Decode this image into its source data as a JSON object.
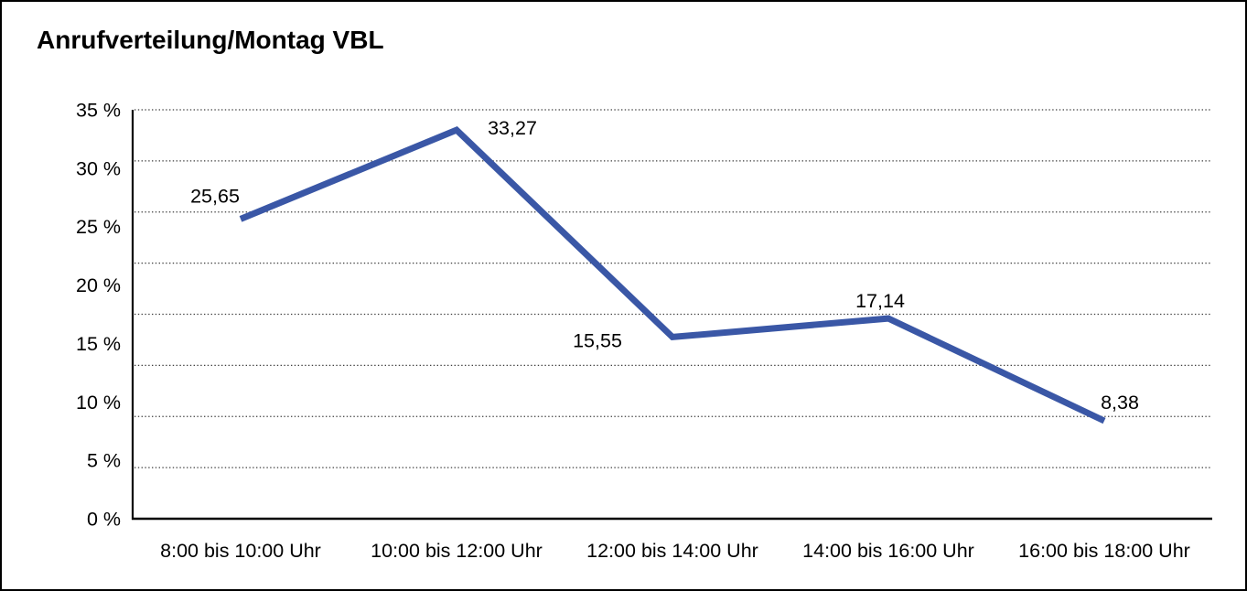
{
  "window": {
    "background_color": "#ffffff",
    "border_color": "#000000"
  },
  "chart_data": {
    "type": "line",
    "title": "Anrufverteilung/Montag VBL",
    "xlabel": "",
    "ylabel": "",
    "categories": [
      "8:00 bis 10:00 Uhr",
      "10:00 bis 12:00 Uhr",
      "12:00 bis 14:00 Uhr",
      "14:00 bis 16:00 Uhr",
      "16:00 bis 18:00 Uhr"
    ],
    "series": [
      {
        "name": "Anrufverteilung Montag VBL",
        "values": [
          25.65,
          33.27,
          15.55,
          17.14,
          8.38
        ],
        "value_labels": [
          "25,65",
          "33,27",
          "15,55",
          "17,14",
          "8,38"
        ],
        "color": "#3A57A6"
      }
    ],
    "unit": "%",
    "ylim": [
      0,
      35
    ],
    "y_ticks": [
      {
        "value": 35,
        "label": "35 %"
      },
      {
        "value": 30,
        "label": "30 %"
      },
      {
        "value": 25,
        "label": "25 %"
      },
      {
        "value": 20,
        "label": "20 %"
      },
      {
        "value": 15,
        "label": "15 %"
      },
      {
        "value": 10,
        "label": "10 %"
      },
      {
        "value": 5,
        "label": "5 %"
      },
      {
        "value": 0,
        "label": "0 %"
      }
    ],
    "grid": true,
    "grid_divisions": 8,
    "grid_style": "dotted",
    "legend_position": "none",
    "text_color": "#000000",
    "axis_color": "#000000",
    "grid_color": "#3f3f3f"
  }
}
